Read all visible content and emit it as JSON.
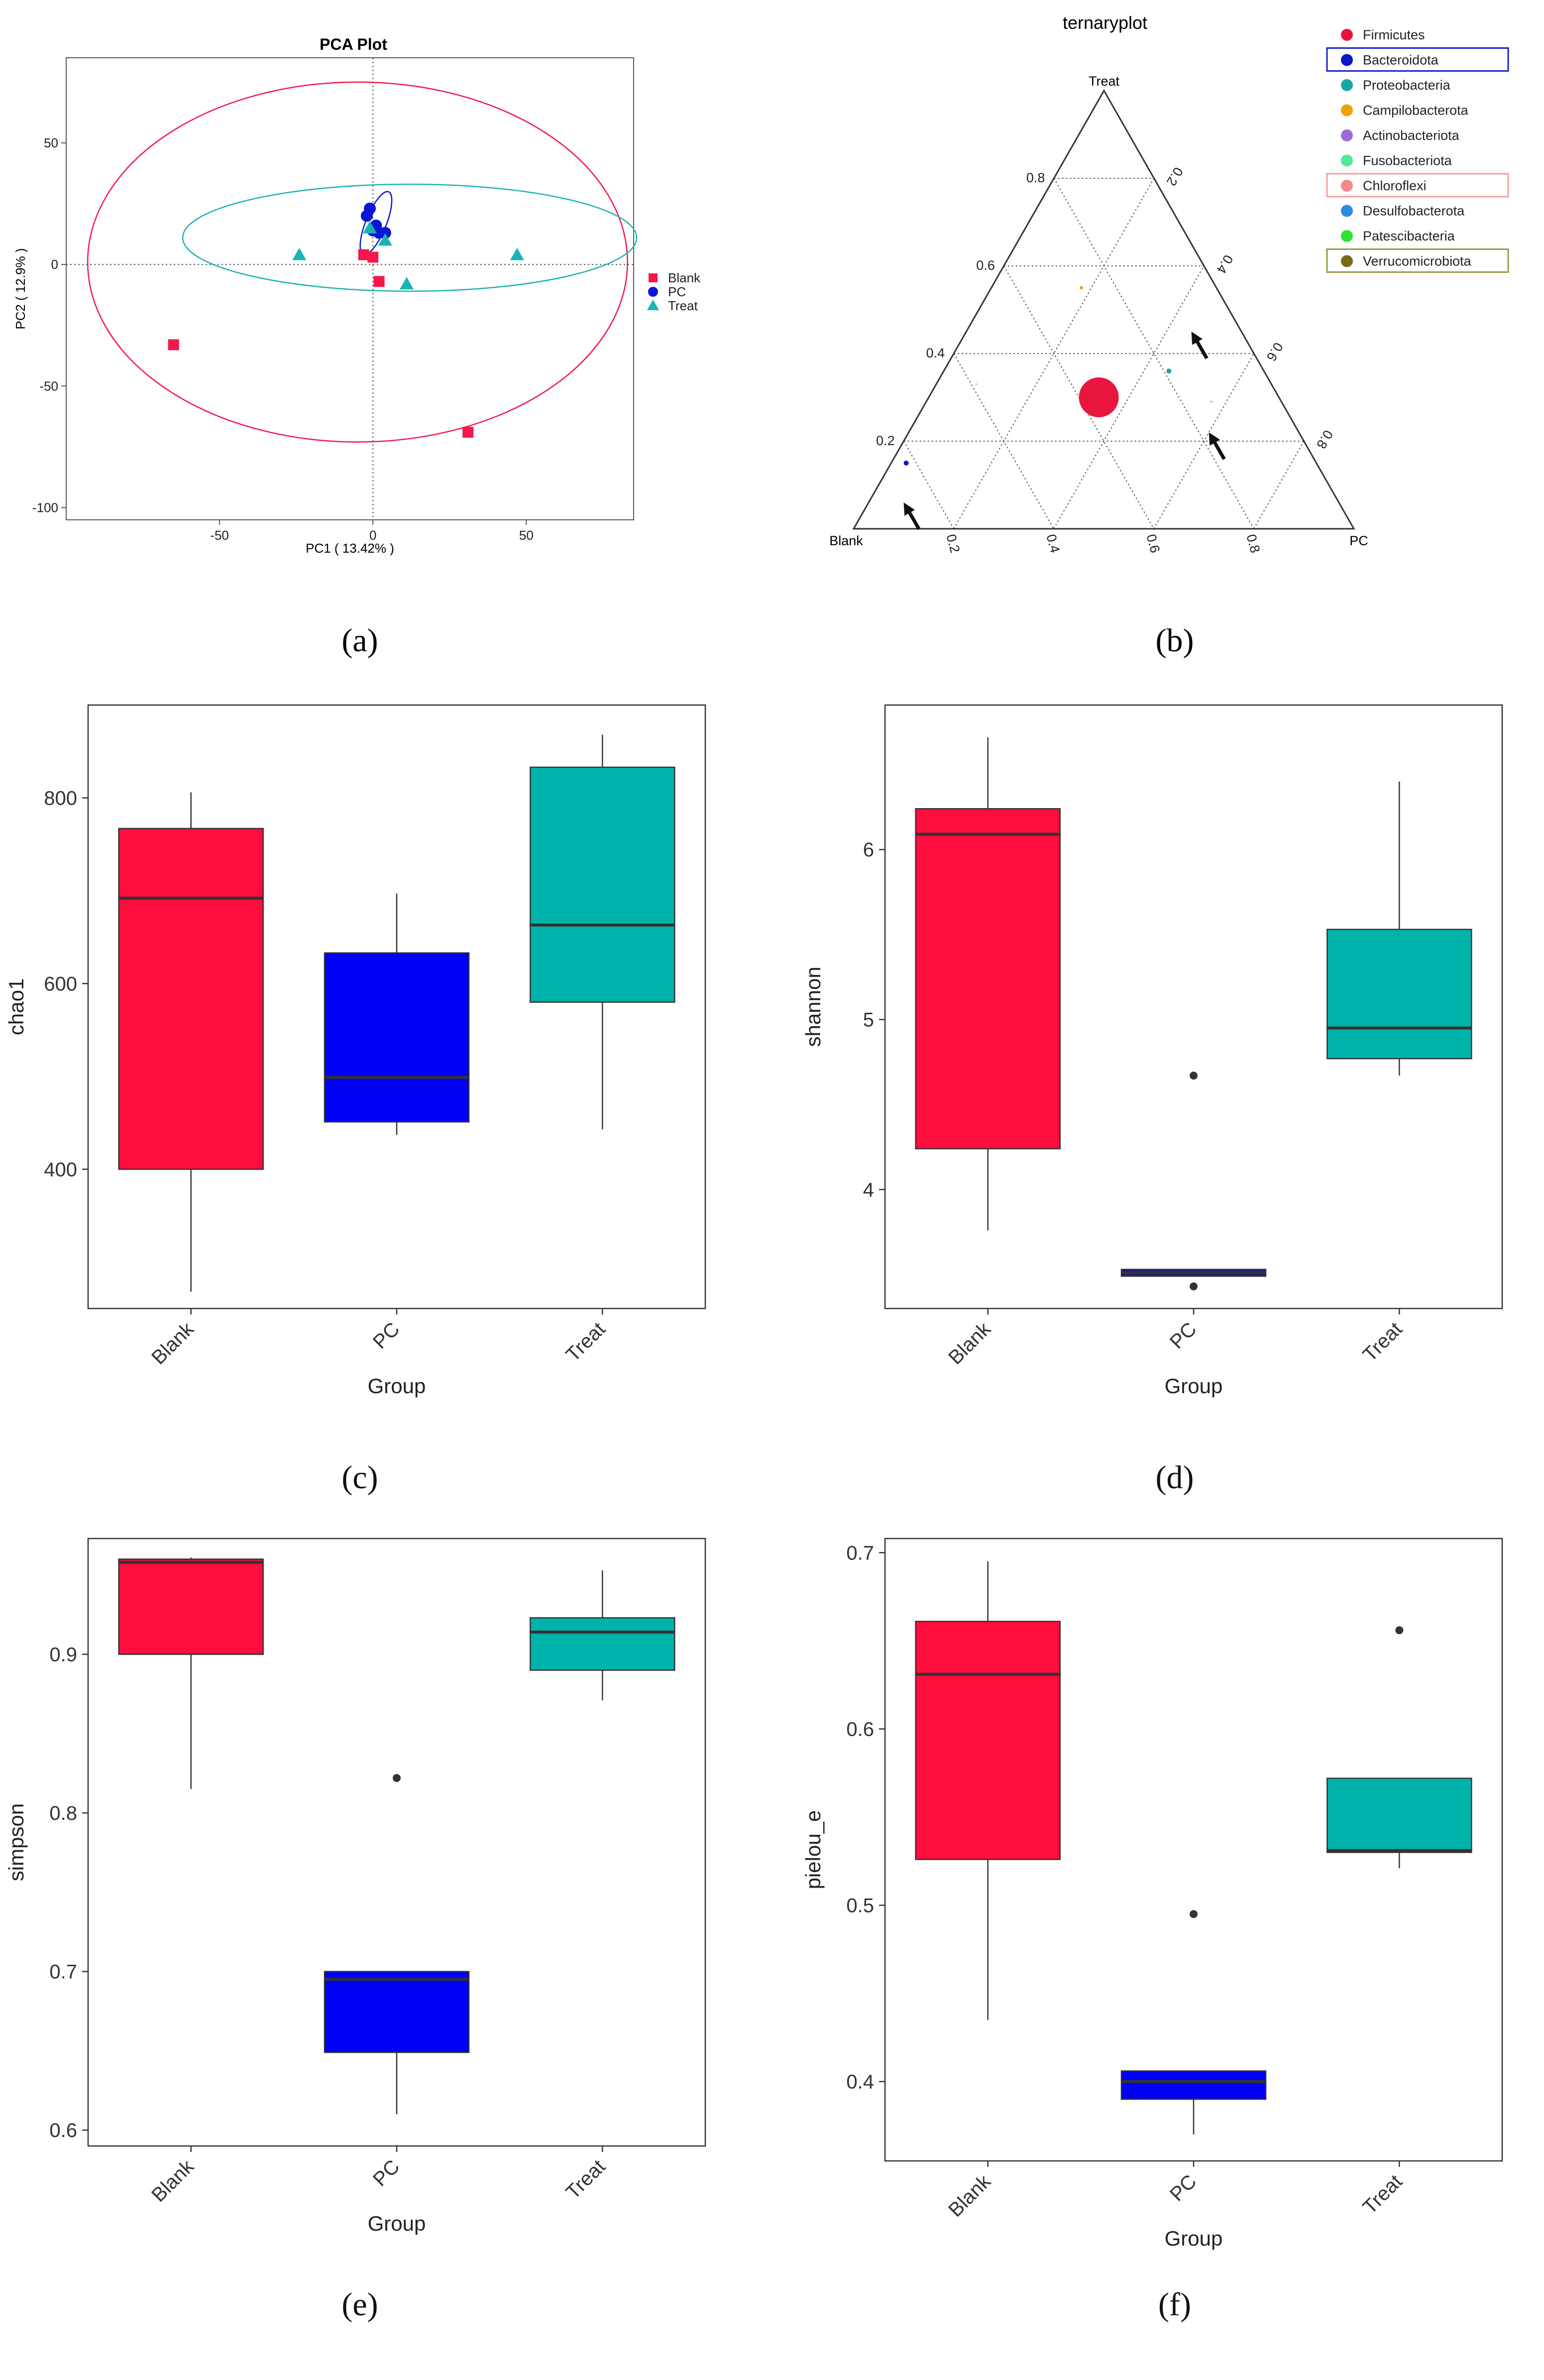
{
  "chart_data": [
    {
      "id": "a",
      "type": "scatter",
      "caption": "(a)",
      "title": "PCA Plot",
      "xlabel": "PC1 ( 13.42% )",
      "ylabel": "PC2 ( 12.9% )",
      "xlim": [
        -100,
        85
      ],
      "ylim": [
        -105,
        85
      ],
      "xticks": [
        -50,
        0,
        50
      ],
      "yticks": [
        -100,
        -50,
        0,
        50
      ],
      "xtick_labels": [
        "-50",
        "0",
        "50"
      ],
      "ytick_labels": [
        "-100",
        "-50",
        "0",
        "50"
      ],
      "series": [
        {
          "name": "Blank",
          "marker": "square",
          "color": "#f5164a",
          "points": [
            [
              -65,
              -33
            ],
            [
              -3,
              4
            ],
            [
              0,
              3
            ],
            [
              2,
              -7
            ],
            [
              31,
              -69
            ]
          ]
        },
        {
          "name": "PC",
          "marker": "circle",
          "color": "#0a16d6",
          "points": [
            [
              -2,
              20
            ],
            [
              -1,
              23
            ],
            [
              0,
              14
            ],
            [
              2,
              13
            ],
            [
              4,
              13
            ],
            [
              1,
              16
            ]
          ]
        },
        {
          "name": "Treat",
          "marker": "triangle",
          "color": "#1ab3b3",
          "points": [
            [
              -24,
              4
            ],
            [
              -1,
              15
            ],
            [
              4,
              10
            ],
            [
              11,
              -8
            ],
            [
              47,
              4
            ]
          ]
        }
      ],
      "ellipses": [
        {
          "group": "Blank",
          "color": "#f5164a",
          "cx": -5,
          "cy": 1,
          "rx": 88,
          "ry": 74,
          "rot": 0
        },
        {
          "group": "Treat",
          "color": "#1ab3b3",
          "cx": 12,
          "cy": 11,
          "rx": 74,
          "ry": 22,
          "rot": 0
        },
        {
          "group": "PC",
          "color": "#0a16d6",
          "cx": 1,
          "cy": 17,
          "rx": 11,
          "ry": 4.2,
          "rot": -68
        }
      ]
    },
    {
      "id": "b",
      "type": "ternary",
      "caption": "(b)",
      "title": "ternaryplot",
      "axes": {
        "top": "Treat",
        "left": "Blank",
        "right": "PC"
      },
      "grid": [
        0.2,
        0.4,
        0.6,
        0.8
      ],
      "left_ticks": [
        "0.2",
        "0.4",
        "0.6",
        "0.8"
      ],
      "right_ticks": [
        "0.2",
        "0.4",
        "0.6",
        "0.8"
      ],
      "bottom_ticks": [
        "0.8",
        "0.6",
        "0.4",
        "0.2"
      ],
      "legend": [
        {
          "label": "Firmicutes",
          "color": "#e8153e",
          "box": ""
        },
        {
          "label": "Bacteroidota",
          "color": "#0b16c8",
          "box": "#1a22c8"
        },
        {
          "label": "Proteobacteria",
          "color": "#1aa6a2",
          "box": ""
        },
        {
          "label": "Campilobacterota",
          "color": "#f2a007",
          "box": ""
        },
        {
          "label": "Actinobacteriota",
          "color": "#9c6bd6",
          "box": ""
        },
        {
          "label": "Fusobacteriota",
          "color": "#52e8a0",
          "box": ""
        },
        {
          "label": "Chloroflexi",
          "color": "#f28a8a",
          "box": "#f2a0a0"
        },
        {
          "label": "Desulfobacterota",
          "color": "#2c8ae0",
          "box": ""
        },
        {
          "label": "Patescibacteria",
          "color": "#35e035",
          "box": ""
        },
        {
          "label": "Verrucomicrobiota",
          "color": "#7a6a18",
          "box": "#9a9a3a"
        }
      ],
      "points": [
        {
          "taxon": "Firmicutes",
          "treat": 0.3,
          "pc": 0.34,
          "size": 40
        },
        {
          "taxon": "Bacteroidota",
          "treat": 0.15,
          "pc": 0.03,
          "size": 5
        },
        {
          "taxon": "Proteobacteria",
          "treat": 0.36,
          "pc": 0.45,
          "size": 5
        },
        {
          "taxon": "Campilobacterota",
          "treat": 0.55,
          "pc": 0.18,
          "size": 3.5
        },
        {
          "taxon": "Chloroflexi",
          "treat": 0.29,
          "pc": 0.57,
          "size": 2.5
        },
        {
          "taxon": "Desulfobacterota",
          "treat": 0.33,
          "pc": 0.08,
          "size": 1.5
        }
      ],
      "arrows": [
        {
          "treat": 0.45,
          "pc": 0.45
        },
        {
          "treat": 0.22,
          "pc": 0.6
        },
        {
          "treat": 0.06,
          "pc": 0.07
        }
      ]
    },
    {
      "id": "c",
      "type": "box",
      "caption": "(c)",
      "ylabel": "chao1",
      "xlabel": "Group",
      "ylim": [
        250,
        900
      ],
      "yticks": [
        400,
        600,
        800
      ],
      "categories": [
        "Blank",
        "PC",
        "Treat"
      ],
      "colors": [
        "#ff0d3c",
        "#0000f5",
        "#00b3aa"
      ],
      "boxes": [
        {
          "min": 268,
          "q1": 400,
          "median": 692,
          "q3": 767,
          "max": 806,
          "outliers": []
        },
        {
          "min": 437,
          "q1": 451,
          "median": 499,
          "q3": 633,
          "max": 697,
          "outliers": []
        },
        {
          "min": 443,
          "q1": 580,
          "median": 663,
          "q3": 833,
          "max": 868,
          "outliers": []
        }
      ]
    },
    {
      "id": "d",
      "type": "box",
      "caption": "(d)",
      "ylabel": "shannon",
      "xlabel": "Group",
      "ylim": [
        3.3,
        6.85
      ],
      "yticks": [
        4,
        5,
        6
      ],
      "categories": [
        "Blank",
        "PC",
        "Treat"
      ],
      "colors": [
        "#ff0d3c",
        "#1b1b8f",
        "#00b3aa"
      ],
      "boxes": [
        {
          "min": 3.76,
          "q1": 4.24,
          "median": 6.09,
          "q3": 6.24,
          "max": 6.66,
          "outliers": []
        },
        {
          "min": 3.49,
          "q1": 3.49,
          "median": 3.51,
          "q3": 3.53,
          "max": 3.53,
          "outliers": [
            4.67,
            3.43
          ]
        },
        {
          "min": 4.67,
          "q1": 4.77,
          "median": 4.95,
          "q3": 5.53,
          "max": 6.4,
          "outliers": []
        }
      ]
    },
    {
      "id": "e",
      "type": "box",
      "caption": "(e)",
      "ylabel": "simpson",
      "xlabel": "Group",
      "ylim": [
        0.59,
        0.973
      ],
      "yticks": [
        0.6,
        0.7,
        0.8,
        0.9
      ],
      "categories": [
        "Blank",
        "PC",
        "Treat"
      ],
      "colors": [
        "#ff0d3c",
        "#0000f5",
        "#00b3aa"
      ],
      "boxes": [
        {
          "min": 0.815,
          "q1": 0.9,
          "median": 0.958,
          "q3": 0.96,
          "max": 0.961,
          "outliers": []
        },
        {
          "min": 0.61,
          "q1": 0.649,
          "median": 0.695,
          "q3": 0.7,
          "max": 0.7,
          "outliers": [
            0.822
          ]
        },
        {
          "min": 0.871,
          "q1": 0.89,
          "median": 0.914,
          "q3": 0.923,
          "max": 0.953,
          "outliers": []
        }
      ]
    },
    {
      "id": "f",
      "type": "box",
      "caption": "(f)",
      "ylabel": "pielou_e",
      "xlabel": "Group",
      "ylim": [
        0.355,
        0.708
      ],
      "yticks": [
        0.4,
        0.5,
        0.6,
        0.7
      ],
      "categories": [
        "Blank",
        "PC",
        "Treat"
      ],
      "colors": [
        "#ff0d3c",
        "#0000f5",
        "#00b3aa"
      ],
      "boxes": [
        {
          "min": 0.435,
          "q1": 0.526,
          "median": 0.631,
          "q3": 0.661,
          "max": 0.695,
          "outliers": []
        },
        {
          "min": 0.37,
          "q1": 0.39,
          "median": 0.4,
          "q3": 0.406,
          "max": 0.406,
          "outliers": [
            0.495
          ]
        },
        {
          "min": 0.521,
          "q1": 0.53,
          "median": 0.531,
          "q3": 0.572,
          "max": 0.572,
          "outliers": [
            0.656
          ]
        }
      ]
    }
  ]
}
